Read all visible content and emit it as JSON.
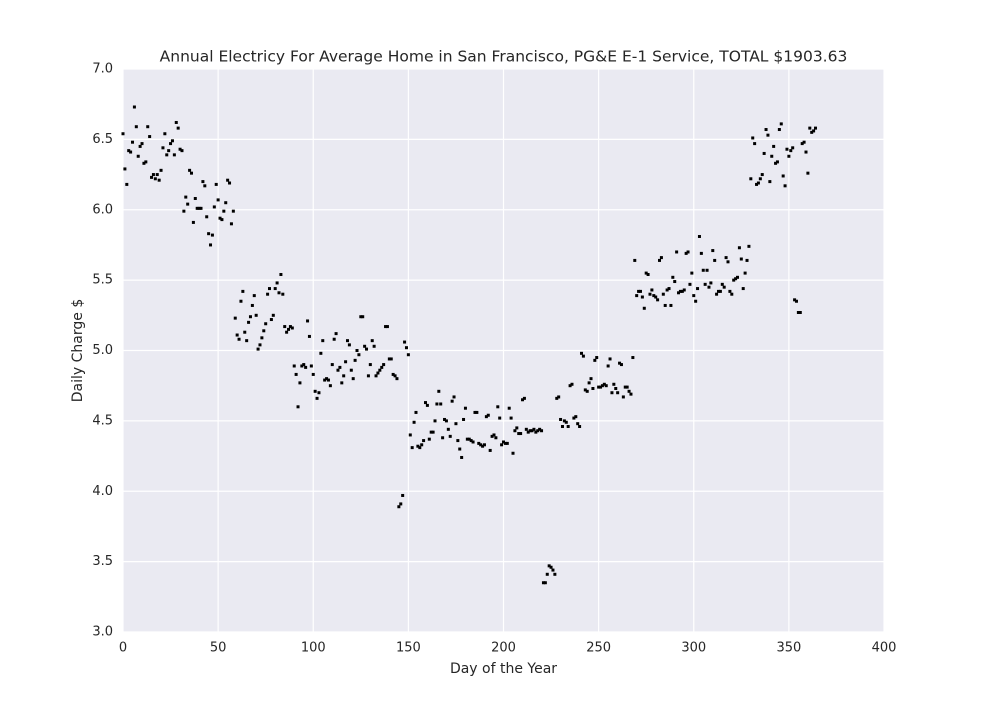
{
  "chart_data": {
    "type": "scatter",
    "title": "Annual Electricy For Average Home in San Francisco, PG&E E-1 Service, TOTAL $1903.63",
    "x_label": "Day of the Year",
    "y_label": "Daily Charge $",
    "color": "#000000",
    "grid": true,
    "background": "#eaeaf2",
    "xlim": [
      0,
      400
    ],
    "xticks": [
      0,
      50,
      100,
      150,
      200,
      250,
      300,
      350,
      400
    ],
    "ylim": [
      3.0,
      7.0
    ],
    "yticks": [
      {
        "value": 3.0,
        "label": "3.0"
      },
      3.5,
      {
        "value": 4.0,
        "label": "4.0"
      },
      4.5,
      {
        "value": 5.0,
        "label": "5.0"
      },
      5.5,
      {
        "value": 6.0,
        "label": "6.0"
      },
      6.5,
      {
        "value": 7.0,
        "label": "7.0"
      }
    ],
    "x": [
      0,
      1,
      2,
      3,
      4,
      5,
      6,
      7,
      8,
      9,
      10,
      11,
      12,
      13,
      14,
      15,
      16,
      17,
      18,
      19,
      20,
      21,
      22,
      23,
      24,
      25,
      26,
      27,
      28,
      29,
      30,
      31,
      32,
      33,
      34,
      35,
      36,
      37,
      38,
      39,
      40,
      41,
      42,
      43,
      44,
      45,
      46,
      47,
      48,
      49,
      50,
      51,
      52,
      53,
      54,
      55,
      56,
      57,
      58,
      59,
      60,
      61,
      62,
      63,
      64,
      65,
      66,
      67,
      68,
      69,
      70,
      71,
      72,
      73,
      74,
      75,
      76,
      77,
      78,
      79,
      80,
      81,
      82,
      83,
      84,
      85,
      86,
      87,
      88,
      89,
      90,
      91,
      92,
      93,
      94,
      95,
      96,
      97,
      98,
      99,
      100,
      101,
      102,
      103,
      104,
      105,
      106,
      107,
      108,
      109,
      110,
      111,
      112,
      113,
      114,
      115,
      116,
      117,
      118,
      119,
      120,
      121,
      122,
      123,
      124,
      125,
      126,
      127,
      128,
      129,
      130,
      131,
      132,
      133,
      134,
      135,
      136,
      137,
      138,
      139,
      140,
      141,
      142,
      143,
      144,
      145,
      146,
      147,
      148,
      149,
      150,
      151,
      152,
      153,
      154,
      155,
      156,
      157,
      158,
      159,
      160,
      161,
      162,
      163,
      164,
      165,
      166,
      167,
      168,
      169,
      170,
      171,
      172,
      173,
      174,
      175,
      176,
      177,
      178,
      179,
      180,
      181,
      182,
      183,
      184,
      185,
      186,
      187,
      188,
      189,
      190,
      191,
      192,
      193,
      194,
      195,
      196,
      197,
      198,
      199,
      200,
      201,
      202,
      203,
      204,
      205,
      206,
      207,
      208,
      209,
      210,
      211,
      212,
      213,
      214,
      215,
      216,
      217,
      218,
      219,
      220,
      221,
      222,
      223,
      224,
      225,
      226,
      227,
      228,
      229,
      230,
      231,
      232,
      233,
      234,
      235,
      236,
      237,
      238,
      239,
      240,
      241,
      242,
      243,
      244,
      245,
      246,
      247,
      248,
      249,
      250,
      251,
      252,
      253,
      254,
      255,
      256,
      257,
      258,
      259,
      260,
      261,
      262,
      263,
      264,
      265,
      266,
      267,
      268,
      269,
      270,
      271,
      272,
      273,
      274,
      275,
      276,
      277,
      278,
      279,
      280,
      281,
      282,
      283,
      284,
      285,
      286,
      287,
      288,
      289,
      290,
      291,
      292,
      293,
      294,
      295,
      296,
      297,
      298,
      299,
      300,
      301,
      302,
      303,
      304,
      305,
      306,
      307,
      308,
      309,
      310,
      311,
      312,
      313,
      314,
      315,
      316,
      317,
      318,
      319,
      320,
      321,
      322,
      323,
      324,
      325,
      326,
      327,
      328,
      329,
      330,
      331,
      332,
      333,
      334,
      335,
      336,
      337,
      338,
      339,
      340,
      341,
      342,
      343,
      344,
      345,
      346,
      347,
      348,
      349,
      350,
      351,
      352,
      353,
      354,
      355,
      356,
      357,
      358,
      359,
      360,
      361,
      362,
      363,
      364
    ],
    "values": [
      6.54,
      6.29,
      6.18,
      6.42,
      6.41,
      6.48,
      6.73,
      6.59,
      6.38,
      6.45,
      6.47,
      6.33,
      6.34,
      6.59,
      6.52,
      6.23,
      6.25,
      6.22,
      6.25,
      6.21,
      6.28,
      6.44,
      6.54,
      6.39,
      6.42,
      6.47,
      6.49,
      6.39,
      6.62,
      6.58,
      6.43,
      6.42,
      5.99,
      6.09,
      6.04,
      6.28,
      6.26,
      5.91,
      6.08,
      6.01,
      6.01,
      6.01,
      6.2,
      6.17,
      5.95,
      5.83,
      5.75,
      5.82,
      6.02,
      6.18,
      6.07,
      5.94,
      5.93,
      5.99,
      6.05,
      6.21,
      6.19,
      5.9,
      5.99,
      5.23,
      5.11,
      5.08,
      5.35,
      5.42,
      5.13,
      5.07,
      5.2,
      5.24,
      5.32,
      5.39,
      5.25,
      5.01,
      5.04,
      5.09,
      5.14,
      5.19,
      5.4,
      5.44,
      5.22,
      5.25,
      5.44,
      5.48,
      5.41,
      5.54,
      5.4,
      5.17,
      5.13,
      5.15,
      5.17,
      5.16,
      4.89,
      4.83,
      4.6,
      4.77,
      4.89,
      4.9,
      4.88,
      5.21,
      5.1,
      4.89,
      4.83,
      4.71,
      4.66,
      4.7,
      4.98,
      5.07,
      4.79,
      4.8,
      4.79,
      4.75,
      4.9,
      5.08,
      5.12,
      4.86,
      4.88,
      4.77,
      4.82,
      4.92,
      5.07,
      5.04,
      4.86,
      4.8,
      4.93,
      5.0,
      4.97,
      5.24,
      5.24,
      5.03,
      5.01,
      4.82,
      4.9,
      5.07,
      5.03,
      4.82,
      4.84,
      4.86,
      4.88,
      4.9,
      5.17,
      5.17,
      4.94,
      4.94,
      4.83,
      4.82,
      4.8,
      3.89,
      3.91,
      3.97,
      5.06,
      5.02,
      4.97,
      4.4,
      4.31,
      4.49,
      4.56,
      4.32,
      4.31,
      4.33,
      4.36,
      4.63,
      4.61,
      4.37,
      4.42,
      4.42,
      4.5,
      4.62,
      4.71,
      4.62,
      4.38,
      4.51,
      4.5,
      4.44,
      4.39,
      4.64,
      4.67,
      4.48,
      4.36,
      4.3,
      4.24,
      4.51,
      4.59,
      4.37,
      4.37,
      4.36,
      4.35,
      4.56,
      4.56,
      4.34,
      4.33,
      4.32,
      4.33,
      4.53,
      4.54,
      4.29,
      4.39,
      4.4,
      4.38,
      4.6,
      4.52,
      4.33,
      4.35,
      4.34,
      4.34,
      4.59,
      4.52,
      4.27,
      4.43,
      4.45,
      4.41,
      4.41,
      4.65,
      4.66,
      4.44,
      4.42,
      4.43,
      4.43,
      4.44,
      4.42,
      4.43,
      4.44,
      4.43,
      3.35,
      3.35,
      3.41,
      3.47,
      3.46,
      3.44,
      3.41,
      4.66,
      4.67,
      4.51,
      4.46,
      4.5,
      4.49,
      4.46,
      4.75,
      4.76,
      4.52,
      4.53,
      4.48,
      4.46,
      4.98,
      4.96,
      4.72,
      4.71,
      4.77,
      4.8,
      4.73,
      4.93,
      4.95,
      4.74,
      4.74,
      4.75,
      4.76,
      4.75,
      4.89,
      4.94,
      4.7,
      4.76,
      4.73,
      4.7,
      4.91,
      4.9,
      4.67,
      4.74,
      4.74,
      4.71,
      4.69,
      4.95,
      5.64,
      5.39,
      5.42,
      5.42,
      5.38,
      5.3,
      5.55,
      5.54,
      5.4,
      5.43,
      5.39,
      5.38,
      5.36,
      5.64,
      5.66,
      5.4,
      5.32,
      5.43,
      5.44,
      5.32,
      5.52,
      5.49,
      5.7,
      5.41,
      5.42,
      5.42,
      5.43,
      5.69,
      5.7,
      5.47,
      5.55,
      5.39,
      5.35,
      5.44,
      5.81,
      5.69,
      5.57,
      5.47,
      5.57,
      5.45,
      5.48,
      5.71,
      5.64,
      5.4,
      5.42,
      5.42,
      5.47,
      5.45,
      5.66,
      5.63,
      5.42,
      5.4,
      5.5,
      5.51,
      5.52,
      5.73,
      5.65,
      5.44,
      5.55,
      5.64,
      5.74,
      6.22,
      6.51,
      6.47,
      6.18,
      6.19,
      6.22,
      6.25,
      6.4,
      6.57,
      6.53,
      6.2,
      6.38,
      6.45,
      6.33,
      6.34,
      6.57,
      6.61,
      6.24,
      6.17,
      6.43,
      6.38,
      6.42,
      6.44,
      5.36,
      5.35,
      5.27,
      5.27,
      6.47,
      6.48,
      6.41,
      6.26,
      6.58,
      6.55,
      6.56,
      6.58
    ]
  }
}
